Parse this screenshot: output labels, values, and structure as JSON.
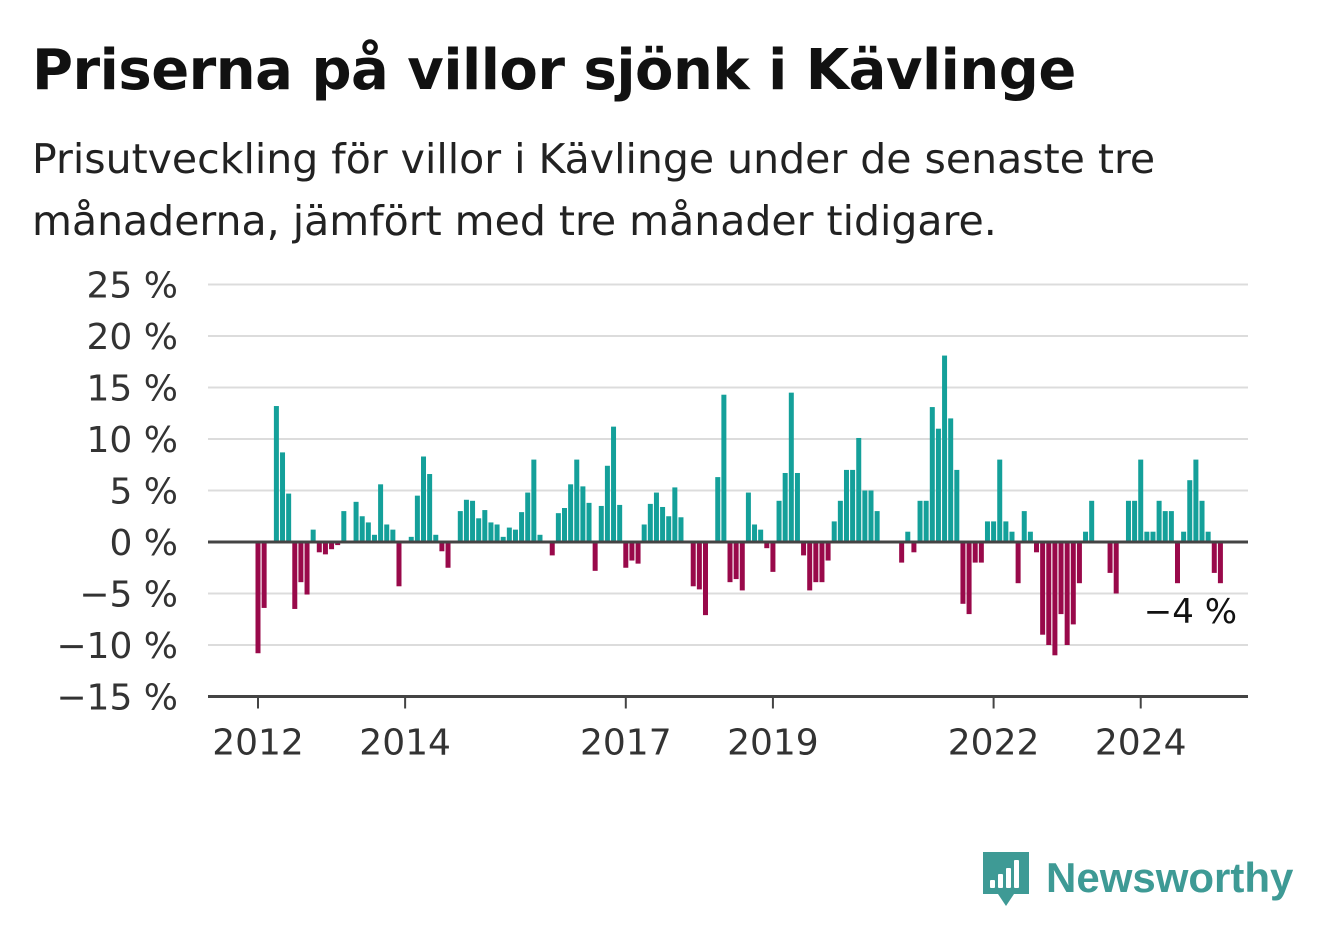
{
  "header": {
    "title": "Priserna på villor sjönk i Kävlinge",
    "subtitle": "Prisutveckling för villor i Kävlinge under de senaste tre månaderna, jämfört med tre månader tidigare."
  },
  "brand": {
    "name": "Newsworthy",
    "icon": "newsworthy-logo-icon",
    "color": "#3e9a95"
  },
  "colors": {
    "positive": "#14a09a",
    "negative": "#99094a",
    "grid": "#dcdcdc",
    "axis": "#444444"
  },
  "chart_data": {
    "type": "bar",
    "title": "Priserna på villor sjönk i Kävlinge",
    "subtitle": "Prisutveckling för villor i Kävlinge under de senaste tre månaderna, jämfört med tre månader tidigare.",
    "xlabel": "",
    "ylabel": "",
    "ylim": [
      -15,
      25
    ],
    "yticks": [
      25,
      20,
      15,
      10,
      5,
      0,
      -5,
      -10,
      -15
    ],
    "ytick_labels": [
      "25 %",
      "20 %",
      "15 %",
      "10 %",
      "5 %",
      "0 %",
      "−5 %",
      "−10 %",
      "−15 %"
    ],
    "xticks": [
      {
        "label": "2012",
        "index": 0
      },
      {
        "label": "2014",
        "index": 24
      },
      {
        "label": "2017",
        "index": 60
      },
      {
        "label": "2019",
        "index": 84
      },
      {
        "label": "2022",
        "index": 120
      },
      {
        "label": "2024",
        "index": 144
      }
    ],
    "grid": true,
    "annotation": {
      "text": "−4 %",
      "index": 154
    },
    "values": [
      -10.8,
      -6.4,
      null,
      13.2,
      8.7,
      4.7,
      -6.5,
      -3.9,
      -5.1,
      1.2,
      -1.0,
      -1.2,
      -0.7,
      -0.3,
      3.0,
      null,
      3.9,
      2.5,
      1.9,
      0.7,
      5.6,
      1.7,
      1.2,
      -4.3,
      null,
      0.5,
      4.5,
      8.3,
      6.6,
      0.7,
      -0.9,
      -2.5,
      null,
      3.0,
      4.1,
      4.0,
      2.3,
      3.1,
      1.9,
      1.7,
      0.5,
      1.4,
      1.2,
      2.9,
      4.8,
      8.0,
      0.7,
      null,
      -1.3,
      2.8,
      3.3,
      5.6,
      8.0,
      5.4,
      3.8,
      -2.8,
      3.5,
      7.4,
      11.2,
      3.6,
      -2.5,
      -1.8,
      -2.1,
      1.7,
      3.7,
      4.8,
      3.4,
      2.5,
      5.3,
      2.4,
      null,
      -4.3,
      -4.6,
      -7.1,
      null,
      6.3,
      14.3,
      -3.9,
      -3.6,
      -4.7,
      4.8,
      1.7,
      1.2,
      -0.6,
      -2.9,
      4.0,
      6.7,
      14.5,
      6.7,
      -1.3,
      -4.7,
      -3.9,
      -3.9,
      -1.8,
      2.0,
      4.0,
      7.0,
      7.0,
      10.1,
      5.0,
      5.0,
      3.0,
      null,
      null,
      null,
      -2.0,
      1.0,
      -1.0,
      4.0,
      4.0,
      13.1,
      11.0,
      18.1,
      12.0,
      7.0,
      -6.0,
      -7.0,
      -2.0,
      -2.0,
      2.0,
      2.0,
      8.0,
      2.0,
      1.0,
      -4.0,
      3.0,
      1.0,
      -1.0,
      -9.0,
      -10.0,
      -11.0,
      -7.0,
      -10.0,
      -8.0,
      -4.0,
      1.0,
      4.0,
      null,
      null,
      -3.0,
      -5.0,
      null,
      4.0,
      4.0,
      8.0,
      1.0,
      1.0,
      4.0,
      3.0,
      3.0,
      -4.0,
      1.0,
      6.0,
      8.0,
      4.0,
      1.0,
      -3.0,
      -4.0
    ]
  }
}
